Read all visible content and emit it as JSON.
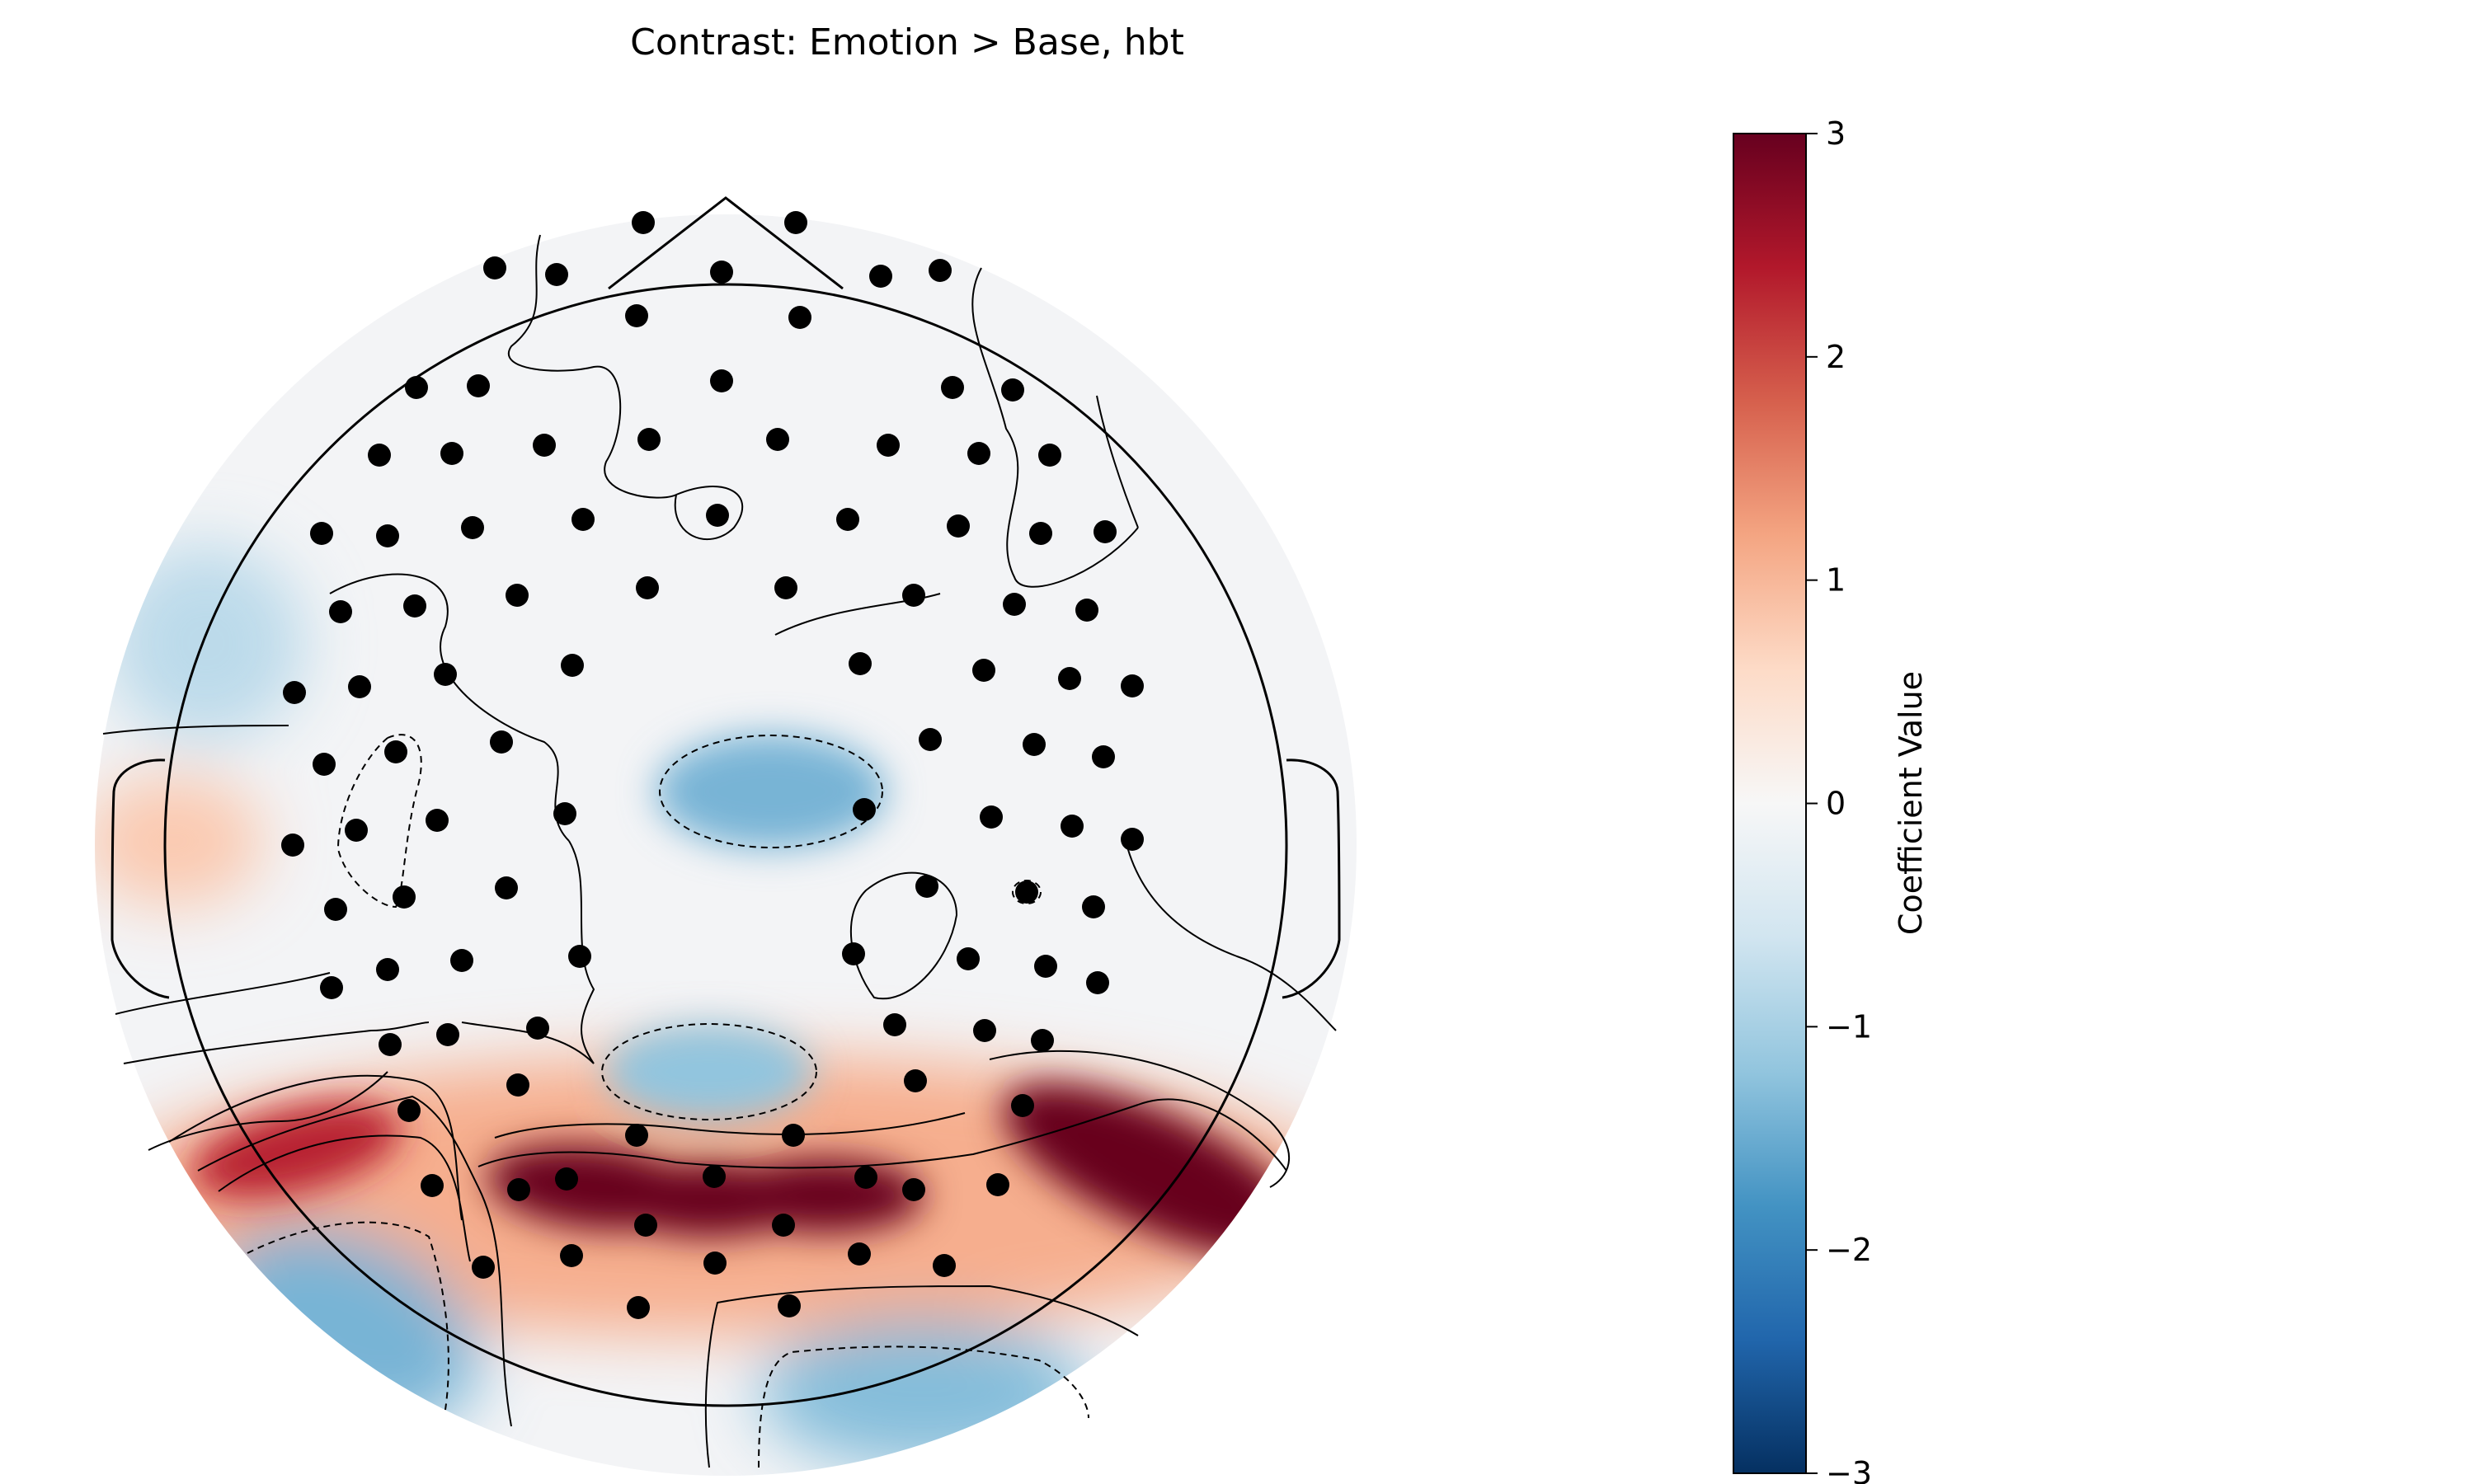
{
  "chart_data": {
    "type": "heatmap",
    "subtype": "topomap",
    "title": "Contrast: Emotion > Base, hbt",
    "colormap": "RdBu_r",
    "colorbar": {
      "label": "Coefficient Value",
      "vmin": -3,
      "vmax": 3,
      "ticks": [
        3,
        2,
        1,
        0,
        -1,
        -2,
        -3
      ],
      "tick_labels": [
        "3",
        "2",
        "1",
        "0",
        "−1",
        "−2",
        "−3"
      ],
      "colors": [
        "#67001f",
        "#b2182b",
        "#d6604d",
        "#f4a582",
        "#fddbc7",
        "#f7f7f7",
        "#d1e5f0",
        "#92c5de",
        "#4393c3",
        "#2166ac",
        "#053061"
      ]
    },
    "features": [
      {
        "name": "frontal-left-blue-region",
        "value": -0.8
      },
      {
        "name": "central-blue-region",
        "value": -1.4
      },
      {
        "name": "parietal-blue-region",
        "value": -1.2
      },
      {
        "name": "right-temporal-red-region",
        "value": 3.0
      },
      {
        "name": "occipital-red-band",
        "value": 3.0
      },
      {
        "name": "left-temporal-red-region",
        "value": 2.3
      },
      {
        "name": "occipital-left-blue-region",
        "value": -1.4
      },
      {
        "name": "occipital-right-blue-region",
        "value": -1.3
      },
      {
        "name": "left-ear-orange-region",
        "value": 0.8
      }
    ]
  }
}
